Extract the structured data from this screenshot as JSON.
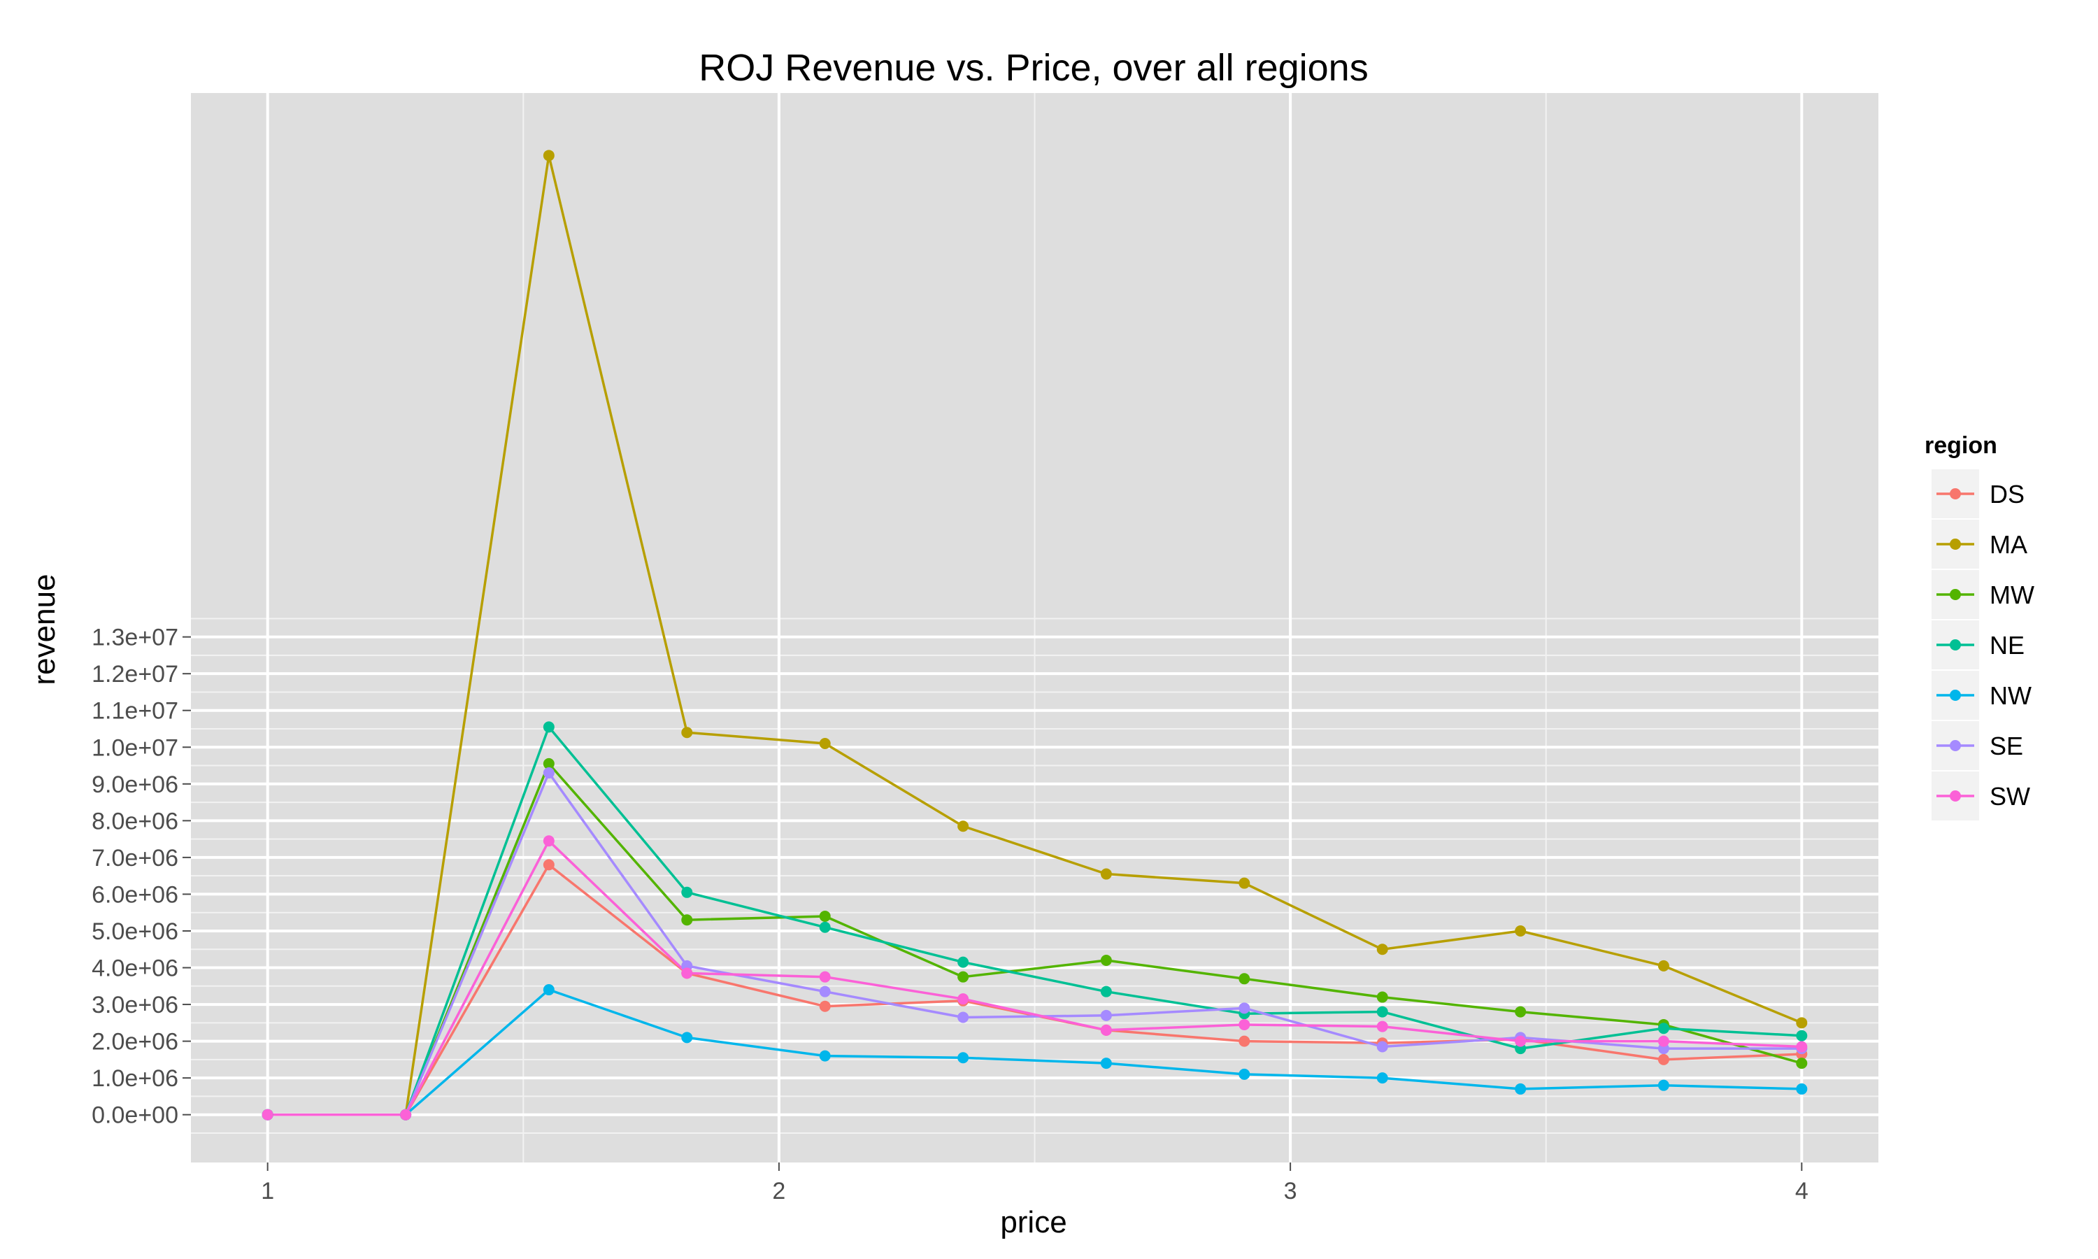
{
  "chart_data": {
    "type": "line",
    "title": "ROJ Revenue vs. Price, over all regions",
    "xlabel": "price",
    "ylabel": "revenue",
    "x_ticks": [
      1,
      2,
      3,
      4
    ],
    "x_tick_labels": [
      "1",
      "2",
      "3",
      "4"
    ],
    "y_ticks": [
      0,
      1000000,
      2000000,
      3000000,
      4000000,
      5000000,
      6000000,
      7000000,
      8000000,
      9000000,
      10000000,
      11000000,
      12000000,
      13000000
    ],
    "y_tick_labels": [
      "0.0e+00",
      "1.0e+06",
      "2.0e+06",
      "3.0e+06",
      "4.0e+06",
      "5.0e+06",
      "6.0e+06",
      "7.0e+06",
      "8.0e+06",
      "9.0e+06",
      "1.0e+07",
      "1.1e+07",
      "1.2e+07",
      "1.3e+07"
    ],
    "xlim": [
      0.85,
      4.15
    ],
    "ylim": [
      -1300000,
      27800000
    ],
    "grid": true,
    "background": "#dedede",
    "legend_title": "region",
    "legend_position": "right",
    "x": [
      1.0,
      1.27,
      1.55,
      1.82,
      2.09,
      2.36,
      2.64,
      2.91,
      3.18,
      3.45,
      3.73,
      4.0
    ],
    "series": [
      {
        "name": "DS",
        "color": "#F8766D",
        "values": [
          0,
          0,
          6800000,
          3850000,
          2950000,
          3100000,
          2300000,
          2000000,
          1950000,
          2050000,
          1500000,
          1650000
        ]
      },
      {
        "name": "MA",
        "color": "#B79F00",
        "values": [
          0,
          0,
          26100000,
          10400000,
          10100000,
          7850000,
          6550000,
          6300000,
          4500000,
          5000000,
          4050000,
          2500000
        ]
      },
      {
        "name": "MW",
        "color": "#53B400",
        "values": [
          0,
          0,
          9550000,
          5300000,
          5400000,
          3750000,
          4200000,
          3700000,
          3200000,
          2800000,
          2450000,
          1400000
        ]
      },
      {
        "name": "NE",
        "color": "#00C094",
        "values": [
          0,
          0,
          10550000,
          6050000,
          5100000,
          4150000,
          3350000,
          2750000,
          2800000,
          1800000,
          2350000,
          2150000
        ]
      },
      {
        "name": "NW",
        "color": "#00B6EB",
        "values": [
          0,
          0,
          3400000,
          2100000,
          1600000,
          1550000,
          1400000,
          1100000,
          1000000,
          700000,
          800000,
          700000
        ]
      },
      {
        "name": "SE",
        "color": "#A58AFF",
        "values": [
          0,
          0,
          9300000,
          4050000,
          3350000,
          2650000,
          2700000,
          2900000,
          1850000,
          2100000,
          1800000,
          1800000
        ]
      },
      {
        "name": "SW",
        "color": "#FB61D7",
        "values": [
          0,
          0,
          7450000,
          3850000,
          3750000,
          3150000,
          2300000,
          2450000,
          2400000,
          2000000,
          2000000,
          1850000
        ]
      }
    ]
  }
}
